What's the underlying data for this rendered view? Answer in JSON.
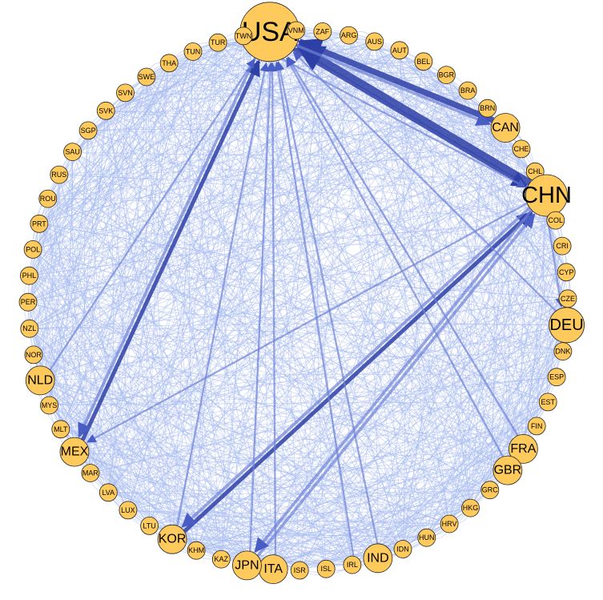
{
  "diagram": {
    "nodes": [
      {
        "label": "USA",
        "weight": 5
      },
      {
        "label": "VNM",
        "weight": 1
      },
      {
        "label": "ZAF",
        "weight": 1
      },
      {
        "label": "ARG",
        "weight": 1
      },
      {
        "label": "AUS",
        "weight": 1
      },
      {
        "label": "AUT",
        "weight": 1
      },
      {
        "label": "BEL",
        "weight": 1
      },
      {
        "label": "BGR",
        "weight": 1
      },
      {
        "label": "BRA",
        "weight": 1
      },
      {
        "label": "BRN",
        "weight": 1
      },
      {
        "label": "CAN",
        "weight": 2
      },
      {
        "label": "CHE",
        "weight": 1
      },
      {
        "label": "CHL",
        "weight": 1
      },
      {
        "label": "CHN",
        "weight": 4
      },
      {
        "label": "COL",
        "weight": 1
      },
      {
        "label": "CRI",
        "weight": 1
      },
      {
        "label": "CYP",
        "weight": 1
      },
      {
        "label": "CZE",
        "weight": 1
      },
      {
        "label": "DEU",
        "weight": 3
      },
      {
        "label": "DNK",
        "weight": 1
      },
      {
        "label": "ESP",
        "weight": 1
      },
      {
        "label": "EST",
        "weight": 1
      },
      {
        "label": "FIN",
        "weight": 1
      },
      {
        "label": "FRA",
        "weight": 2
      },
      {
        "label": "GBR",
        "weight": 2
      },
      {
        "label": "GRC",
        "weight": 1
      },
      {
        "label": "HKG",
        "weight": 1
      },
      {
        "label": "HRV",
        "weight": 1
      },
      {
        "label": "HUN",
        "weight": 1
      },
      {
        "label": "IDN",
        "weight": 1
      },
      {
        "label": "IND",
        "weight": 2
      },
      {
        "label": "IRL",
        "weight": 1
      },
      {
        "label": "ISL",
        "weight": 1
      },
      {
        "label": "ISR",
        "weight": 1
      },
      {
        "label": "ITA",
        "weight": 2
      },
      {
        "label": "JPN",
        "weight": 2
      },
      {
        "label": "KAZ",
        "weight": 1
      },
      {
        "label": "KHM",
        "weight": 1
      },
      {
        "label": "KOR",
        "weight": 2
      },
      {
        "label": "LTU",
        "weight": 1
      },
      {
        "label": "LUX",
        "weight": 1
      },
      {
        "label": "LVA",
        "weight": 1
      },
      {
        "label": "MAR",
        "weight": 1
      },
      {
        "label": "MEX",
        "weight": 2
      },
      {
        "label": "MLT",
        "weight": 1
      },
      {
        "label": "MYS",
        "weight": 1
      },
      {
        "label": "NLD",
        "weight": 2
      },
      {
        "label": "NOR",
        "weight": 1
      },
      {
        "label": "NZL",
        "weight": 1
      },
      {
        "label": "PER",
        "weight": 1
      },
      {
        "label": "PHL",
        "weight": 1
      },
      {
        "label": "POL",
        "weight": 1
      },
      {
        "label": "PRT",
        "weight": 1
      },
      {
        "label": "ROU",
        "weight": 1
      },
      {
        "label": "RUS",
        "weight": 1
      },
      {
        "label": "SAU",
        "weight": 1
      },
      {
        "label": "SGP",
        "weight": 1
      },
      {
        "label": "SVK",
        "weight": 1
      },
      {
        "label": "SVN",
        "weight": 1
      },
      {
        "label": "SWE",
        "weight": 1
      },
      {
        "label": "THA",
        "weight": 1
      },
      {
        "label": "TUN",
        "weight": 1
      },
      {
        "label": "TUR",
        "weight": 1
      },
      {
        "label": "TWN",
        "weight": 1
      }
    ],
    "edges": [
      {
        "from": "CHN",
        "to": "USA",
        "strength": 6
      },
      {
        "from": "USA",
        "to": "CHN",
        "strength": 3
      },
      {
        "from": "CAN",
        "to": "USA",
        "strength": 5
      },
      {
        "from": "USA",
        "to": "CAN",
        "strength": 2
      },
      {
        "from": "MEX",
        "to": "USA",
        "strength": 3
      },
      {
        "from": "USA",
        "to": "MEX",
        "strength": 2
      },
      {
        "from": "KOR",
        "to": "CHN",
        "strength": 3
      },
      {
        "from": "CHN",
        "to": "KOR",
        "strength": 2
      },
      {
        "from": "JPN",
        "to": "CHN",
        "strength": 2
      },
      {
        "from": "CHN",
        "to": "JPN",
        "strength": 2
      },
      {
        "from": "DEU",
        "to": "USA",
        "strength": 1
      },
      {
        "from": "JPN",
        "to": "USA",
        "strength": 1
      },
      {
        "from": "KOR",
        "to": "USA",
        "strength": 1
      },
      {
        "from": "TWN",
        "to": "CHN",
        "strength": 1
      },
      {
        "from": "CHN",
        "to": "DEU",
        "strength": 1
      },
      {
        "from": "GBR",
        "to": "USA",
        "strength": 1
      },
      {
        "from": "IRL",
        "to": "USA",
        "strength": 1
      },
      {
        "from": "ITA",
        "to": "USA",
        "strength": 1
      },
      {
        "from": "IND",
        "to": "USA",
        "strength": 1
      },
      {
        "from": "FRA",
        "to": "USA",
        "strength": 1
      },
      {
        "from": "CHN",
        "to": "MEX",
        "strength": 1
      },
      {
        "from": "NLD",
        "to": "USA",
        "strength": 1
      }
    ],
    "colors": {
      "node_fill": "#FFCA5C",
      "node_stroke": "#222222",
      "edge_light": "#A6BAF0",
      "edge_dark": "#2E3FA6"
    }
  }
}
